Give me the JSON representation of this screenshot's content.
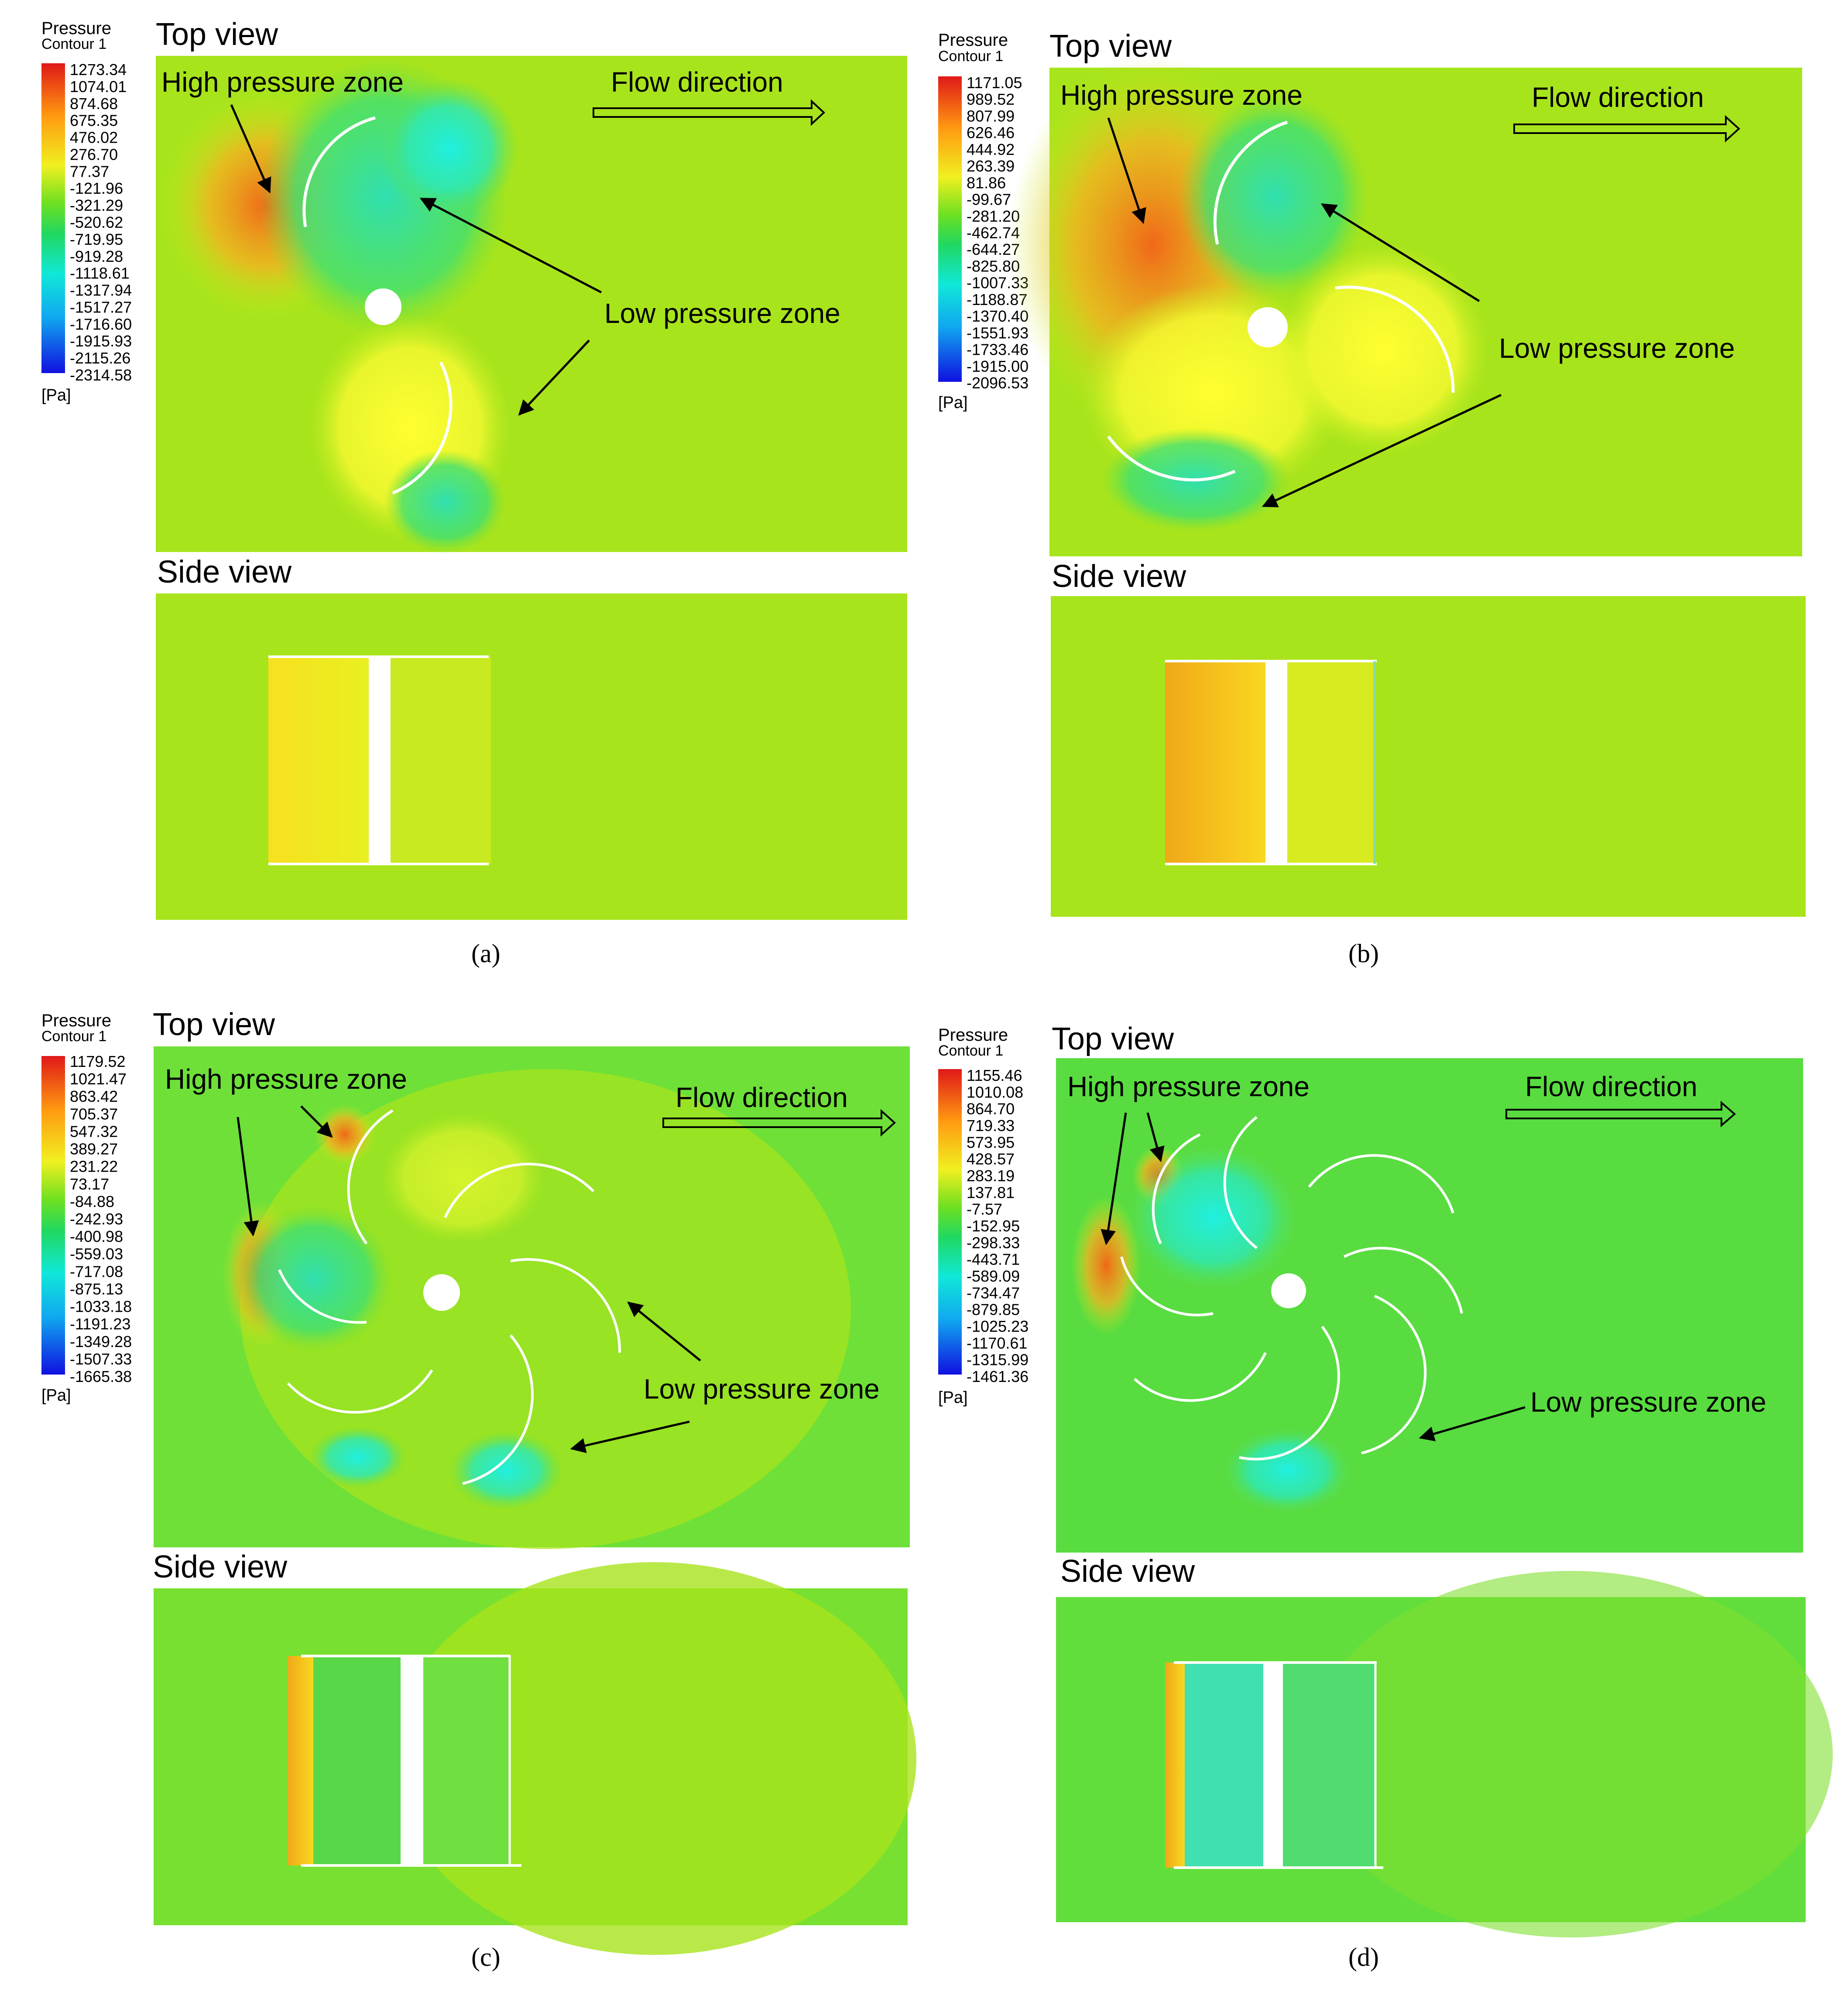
{
  "figure": {
    "panels": [
      {
        "id": "a",
        "caption": "(a)",
        "legend": {
          "title1": "Pressure",
          "title2": "Contour 1",
          "unit": "[Pa]",
          "ticks": [
            "1273.34",
            "1074.01",
            "874.68",
            "675.35",
            "476.02",
            "276.70",
            "77.37",
            "-121.96",
            "-321.29",
            "-520.62",
            "-719.95",
            "-919.28",
            "-1118.61",
            "-1317.94",
            "-1517.27",
            "-1716.60",
            "-1915.93",
            "-2115.26",
            "-2314.58"
          ]
        },
        "top_title": "Top view",
        "side_title": "Side view",
        "labels": {
          "high": "High pressure zone",
          "low": "Low pressure zone",
          "flow": "Flow direction"
        },
        "blades": 2
      },
      {
        "id": "b",
        "caption": "(b)",
        "legend": {
          "title1": "Pressure",
          "title2": "Contour 1",
          "unit": "[Pa]",
          "ticks": [
            "1171.05",
            "989.52",
            "807.99",
            "626.46",
            "444.92",
            "263.39",
            "81.86",
            "-99.67",
            "-281.20",
            "-462.74",
            "-644.27",
            "-825.80",
            "-1007.33",
            "-1188.87",
            "-1370.40",
            "-1551.93",
            "-1733.46",
            "-1915.00",
            "-2096.53"
          ]
        },
        "top_title": "Top view",
        "side_title": "Side view",
        "labels": {
          "high": "High pressure zone",
          "low": "Low pressure zone",
          "flow": "Flow direction"
        },
        "blades": 3
      },
      {
        "id": "c",
        "caption": "(c)",
        "legend": {
          "title1": "Pressure",
          "title2": "Contour 1",
          "unit": "[Pa]",
          "ticks": [
            "1179.52",
            "1021.47",
            "863.42",
            "705.37",
            "547.32",
            "389.27",
            "231.22",
            "73.17",
            "-84.88",
            "-242.93",
            "-400.98",
            "-559.03",
            "-717.08",
            "-875.13",
            "-1033.18",
            "-1191.23",
            "-1349.28",
            "-1507.33",
            "-1665.38"
          ]
        },
        "top_title": "Top view",
        "side_title": "Side view",
        "labels": {
          "high": "High pressure zone",
          "low": "Low pressure zone",
          "flow": "Flow direction"
        },
        "blades": 6
      },
      {
        "id": "d",
        "caption": "(d)",
        "legend": {
          "title1": "Pressure",
          "title2": "Contour 1",
          "unit": "[Pa]",
          "ticks": [
            "1155.46",
            "1010.08",
            "864.70",
            "719.33",
            "573.95",
            "428.57",
            "283.19",
            "137.81",
            "-7.57",
            "-152.95",
            "-298.33",
            "-443.71",
            "-589.09",
            "-734.47",
            "-879.85",
            "-1025.23",
            "-1170.61",
            "-1315.99",
            "-1461.36"
          ]
        },
        "top_title": "Top view",
        "side_title": "Side view",
        "labels": {
          "high": "High pressure zone",
          "low": "Low pressure zone",
          "flow": "Flow direction"
        },
        "blades": 8
      }
    ],
    "colors": {
      "field": "#a9e61a",
      "field_green": "#5fe03a",
      "high": "#f07818",
      "low": "#20d8c0",
      "yellow": "#ffff20",
      "blade": "#ffffff"
    }
  }
}
